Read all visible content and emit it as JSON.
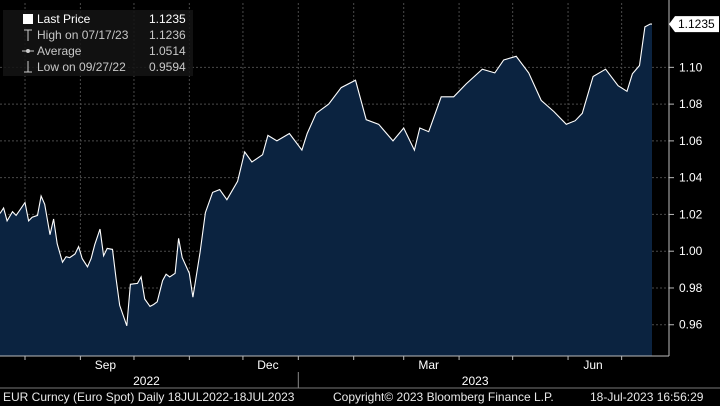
{
  "legend": {
    "last_price_label": "Last Price",
    "last_price_value": "1.1235",
    "high_label": "High on 07/17/23",
    "high_value": "1.1236",
    "average_label": "Average",
    "average_value": "1.0514",
    "low_label": "Low on 09/27/22",
    "low_value": "0.9594"
  },
  "footer": {
    "instrument": "EUR Curncy (Euro Spot)  Daily 18JUL2022-18JUL2023",
    "copyright": "Copyright© 2023 Bloomberg Finance L.P.",
    "timestamp": "18-Jul-2023 16:56:29"
  },
  "colors": {
    "area_fill": "#0b2340",
    "line": "#ffffff",
    "grid": "#4a4a4a",
    "last_price_tag": "#ffffff"
  },
  "chart_data": {
    "type": "area",
    "title": "",
    "xlabel": "",
    "ylabel": "",
    "ylim": [
      0.943,
      1.135
    ],
    "y_ticks": [
      "0.96",
      "0.98",
      "1.00",
      "1.02",
      "1.04",
      "1.06",
      "1.08",
      "1.10"
    ],
    "month_labels": [
      "Sep",
      "Dec",
      "Mar",
      "Jun"
    ],
    "year_labels": [
      "2022",
      "2023"
    ],
    "last_price_tag": "1.1235",
    "grid": true,
    "series": [
      {
        "x": [
          "2022-07-18",
          "2022-07-20",
          "2022-07-22",
          "2022-07-25",
          "2022-07-27",
          "2022-07-29",
          "2022-08-01",
          "2022-08-03",
          "2022-08-05",
          "2022-08-08",
          "2022-08-10",
          "2022-08-12",
          "2022-08-15",
          "2022-08-17",
          "2022-08-19",
          "2022-08-22",
          "2022-08-24",
          "2022-08-26",
          "2022-08-29",
          "2022-08-31",
          "2022-09-02",
          "2022-09-05",
          "2022-09-07",
          "2022-09-09",
          "2022-09-12",
          "2022-09-14",
          "2022-09-16",
          "2022-09-19",
          "2022-09-21",
          "2022-09-23",
          "2022-09-27",
          "2022-09-29",
          "2022-10-03",
          "2022-10-05",
          "2022-10-07",
          "2022-10-10",
          "2022-10-12",
          "2022-10-14",
          "2022-10-17",
          "2022-10-19",
          "2022-10-21",
          "2022-10-24",
          "2022-10-26",
          "2022-10-28",
          "2022-11-01",
          "2022-11-03",
          "2022-11-07",
          "2022-11-10",
          "2022-11-14",
          "2022-11-18",
          "2022-11-22",
          "2022-11-28",
          "2022-12-02",
          "2022-12-06",
          "2022-12-12",
          "2022-12-15",
          "2022-12-20",
          "2022-12-27",
          "2023-01-03",
          "2023-01-06",
          "2023-01-11",
          "2023-01-18",
          "2023-01-25",
          "2023-02-02",
          "2023-02-08",
          "2023-02-15",
          "2023-02-23",
          "2023-03-01",
          "2023-03-07",
          "2023-03-10",
          "2023-03-15",
          "2023-03-22",
          "2023-03-29",
          "2023-04-05",
          "2023-04-14",
          "2023-04-21",
          "2023-04-26",
          "2023-05-03",
          "2023-05-10",
          "2023-05-17",
          "2023-05-24",
          "2023-05-31",
          "2023-06-05",
          "2023-06-09",
          "2023-06-15",
          "2023-06-22",
          "2023-06-29",
          "2023-07-04",
          "2023-07-07",
          "2023-07-11",
          "2023-07-14",
          "2023-07-17",
          "2023-07-18"
        ],
        "y": [
          1.0205,
          1.0235,
          1.0165,
          1.0215,
          1.0195,
          1.0222,
          1.0265,
          1.0165,
          1.0185,
          1.0195,
          1.03,
          1.0255,
          1.009,
          1.0175,
          1.004,
          0.994,
          0.997,
          0.9965,
          0.9985,
          1.0025,
          0.996,
          0.9915,
          0.996,
          1.0035,
          1.012,
          0.9975,
          1.0015,
          1.001,
          0.985,
          0.9705,
          0.9594,
          0.982,
          0.9825,
          0.986,
          0.974,
          0.97,
          0.971,
          0.9725,
          0.984,
          0.9875,
          0.986,
          0.988,
          1.007,
          0.9965,
          0.988,
          0.975,
          0.9995,
          1.021,
          1.032,
          1.0335,
          1.028,
          1.038,
          1.054,
          1.0485,
          1.0525,
          1.063,
          1.06,
          1.064,
          1.055,
          1.064,
          1.075,
          1.08,
          1.089,
          1.093,
          1.0715,
          1.069,
          1.06,
          1.067,
          1.055,
          1.067,
          1.065,
          1.084,
          1.084,
          1.091,
          1.099,
          1.097,
          1.104,
          1.106,
          1.097,
          1.082,
          1.076,
          1.069,
          1.071,
          1.075,
          1.095,
          1.099,
          1.09,
          1.087,
          1.0965,
          1.101,
          1.122,
          1.1236,
          1.1235
        ]
      }
    ]
  }
}
